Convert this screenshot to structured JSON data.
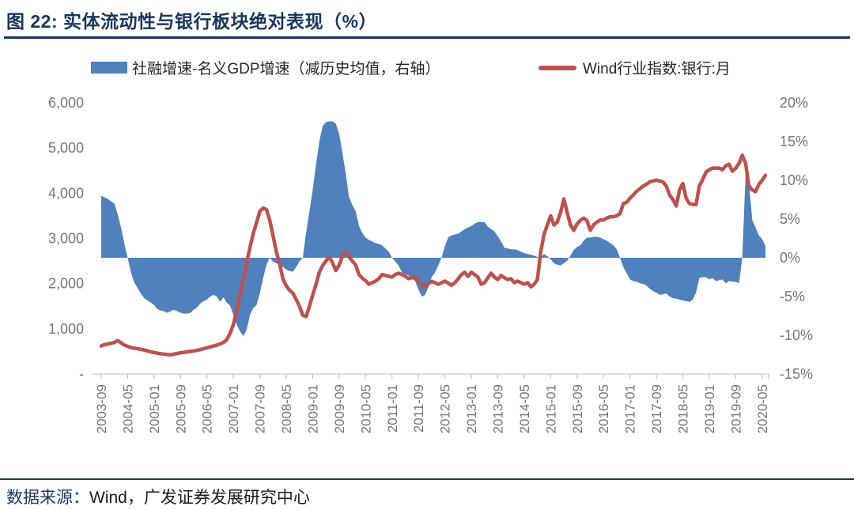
{
  "figure": {
    "title": "图 22: 实体流动性与银行板块绝对表现（%）",
    "source_prefix": "数据来源：",
    "source_text": "Wind，广发证券发展研究中心"
  },
  "legend": [
    {
      "label": "社融增速-名义GDP增速（减历史均值，右轴）",
      "color": "#4F81BD",
      "type": "area"
    },
    {
      "label": "Wind行业指数:银行:月",
      "color": "#C0504D",
      "type": "line"
    }
  ],
  "colors": {
    "area_blue": "#4F81BD",
    "line_red": "#C0504D",
    "title_navy": "#17375E",
    "axis_text_gray": "#757575",
    "axis_line_gray": "#BFBFBF"
  },
  "chart_data": {
    "type": "combo",
    "title": "实体流动性与银行板块绝对表现（%）",
    "x_start": "2003-09",
    "x_end": "2020-06",
    "freq": "monthly",
    "grid": "off",
    "legend_position": "top",
    "x_tick_labels": [
      "2003-09",
      "2004-05",
      "2005-01",
      "2005-09",
      "2006-05",
      "2007-01",
      "2007-09",
      "2008-05",
      "2009-01",
      "2009-09",
      "2010-05",
      "2011-01",
      "2011-09",
      "2012-05",
      "2013-01",
      "2013-09",
      "2014-05",
      "2015-01",
      "2015-09",
      "2016-05",
      "2017-01",
      "2017-09",
      "2018-05",
      "2019-01",
      "2019-09",
      "2020-05"
    ],
    "x_tick_every_months": 8,
    "left_axis": {
      "ticks": [
        "6,000",
        "5,000",
        "4,000",
        "3,000",
        "2,000",
        "1,000",
        "-"
      ],
      "min": 0,
      "max": 6000
    },
    "right_axis": {
      "ticks": [
        "20%",
        "15%",
        "10%",
        "5%",
        "0%",
        "-5%",
        "-10%",
        "-15%"
      ],
      "min": -15,
      "max": 20
    },
    "series": [
      {
        "name": "社融增速-名义GDP增速（减历史均值，右轴）",
        "type": "area",
        "axis": "right",
        "color": "#4F81BD",
        "values": [
          8.0,
          7.8,
          7.6,
          7.3,
          7.0,
          5.6,
          3.9,
          1.8,
          0.0,
          -1.9,
          -3.2,
          -3.9,
          -4.6,
          -5.2,
          -5.5,
          -5.8,
          -6.1,
          -6.6,
          -6.8,
          -6.9,
          -7.1,
          -6.9,
          -6.7,
          -6.9,
          -7.1,
          -7.2,
          -7.2,
          -7.1,
          -6.7,
          -6.4,
          -5.9,
          -5.6,
          -5.4,
          -5.0,
          -4.8,
          -5.0,
          -5.7,
          -5.1,
          -5.8,
          -6.2,
          -7.4,
          -8.6,
          -9.5,
          -10.1,
          -9.3,
          -7.4,
          -6.5,
          -6.1,
          -4.6,
          -2.6,
          -0.9,
          0.0,
          -0.5,
          -0.7,
          -0.9,
          -1.2,
          -1.5,
          -1.7,
          -1.8,
          -1.2,
          -0.5,
          0.0,
          3.2,
          6.0,
          8.8,
          12.0,
          15.0,
          17.0,
          17.5,
          17.6,
          17.6,
          17.3,
          16.0,
          13.5,
          10.8,
          7.8,
          6.8,
          6.0,
          4.1,
          3.2,
          2.6,
          2.3,
          2.1,
          1.9,
          1.8,
          1.6,
          1.2,
          0.8,
          0.0,
          -0.5,
          -1.0,
          -1.9,
          -2.1,
          -2.3,
          -2.7,
          -3.0,
          -4.1,
          -5.0,
          -4.8,
          -3.8,
          -2.5,
          -1.9,
          -1.0,
          0.0,
          1.5,
          2.6,
          2.9,
          3.0,
          3.1,
          3.4,
          3.7,
          3.9,
          4.1,
          4.4,
          4.6,
          4.6,
          4.6,
          4.0,
          3.7,
          3.4,
          2.8,
          2.1,
          1.3,
          1.2,
          1.1,
          1.1,
          1.0,
          0.8,
          0.6,
          0.5,
          0.4,
          0.3,
          0.1,
          0.0,
          0.5,
          0.2,
          -0.2,
          -0.7,
          -0.9,
          -1.0,
          -0.7,
          -0.4,
          0.3,
          1.0,
          1.4,
          1.6,
          2.2,
          2.6,
          2.6,
          2.7,
          2.7,
          2.6,
          2.4,
          2.2,
          1.9,
          1.6,
          1.1,
          0.0,
          -1.2,
          -2.0,
          -2.8,
          -3.0,
          -3.1,
          -3.3,
          -3.4,
          -3.6,
          -4.0,
          -4.3,
          -4.5,
          -4.8,
          -4.7,
          -4.6,
          -5.0,
          -5.2,
          -5.3,
          -5.4,
          -5.5,
          -5.6,
          -5.7,
          -5.4,
          -4.5,
          -2.6,
          -2.5,
          -2.5,
          -2.8,
          -2.6,
          -3.0,
          -2.9,
          -2.8,
          -3.3,
          -3.0,
          -3.1,
          -3.1,
          -3.3,
          0.0,
          10.9,
          9.8,
          4.9,
          3.9,
          2.9,
          2.4,
          1.5
        ]
      },
      {
        "name": "Wind行业指数:银行:月",
        "type": "line",
        "axis": "left",
        "color": "#C0504D",
        "values": [
          620,
          650,
          665,
          680,
          700,
          740,
          690,
          640,
          610,
          585,
          570,
          560,
          545,
          530,
          510,
          490,
          475,
          462,
          450,
          440,
          430,
          425,
          440,
          455,
          470,
          480,
          490,
          500,
          510,
          525,
          540,
          560,
          580,
          600,
          620,
          640,
          665,
          700,
          760,
          900,
          1100,
          1400,
          1750,
          2100,
          2450,
          2800,
          3100,
          3350,
          3600,
          3670,
          3640,
          3400,
          3060,
          2700,
          2430,
          2100,
          1950,
          1850,
          1790,
          1650,
          1500,
          1300,
          1270,
          1500,
          1750,
          1980,
          2250,
          2400,
          2500,
          2590,
          2465,
          2290,
          2410,
          2610,
          2700,
          2590,
          2500,
          2410,
          2200,
          2120,
          2070,
          1985,
          2020,
          2055,
          2110,
          2200,
          2180,
          2160,
          2145,
          2200,
          2230,
          2200,
          2160,
          2110,
          2130,
          2145,
          2055,
          1965,
          1930,
          2000,
          2050,
          2020,
          1985,
          2020,
          2055,
          2010,
          1965,
          2020,
          2100,
          2200,
          2250,
          2160,
          2250,
          2200,
          2145,
          1985,
          2020,
          2130,
          2230,
          2145,
          2090,
          2180,
          2130,
          2090,
          2110,
          2020,
          2055,
          2020,
          1985,
          2020,
          1930,
          1985,
          2090,
          2700,
          3090,
          3300,
          3500,
          3300,
          3360,
          3570,
          3875,
          3570,
          3300,
          3180,
          3320,
          3400,
          3450,
          3390,
          3180,
          3300,
          3360,
          3410,
          3410,
          3450,
          3480,
          3480,
          3500,
          3550,
          3770,
          3800,
          3890,
          3960,
          4040,
          4100,
          4160,
          4200,
          4250,
          4270,
          4290,
          4270,
          4250,
          4160,
          3960,
          3860,
          3715,
          4070,
          4215,
          3890,
          3770,
          3750,
          3750,
          4160,
          4300,
          4465,
          4520,
          4555,
          4555,
          4555,
          4520,
          4610,
          4645,
          4485,
          4555,
          4660,
          4840,
          4660,
          4160,
          4070,
          4035,
          4195,
          4285,
          4395
        ]
      }
    ]
  }
}
